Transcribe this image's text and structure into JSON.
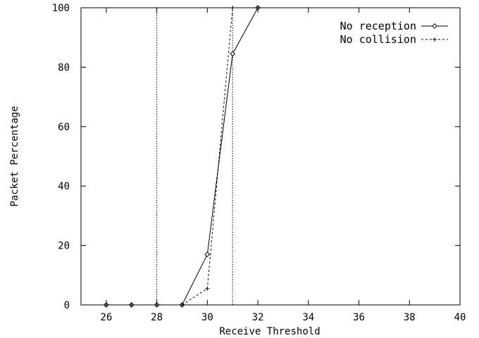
{
  "chart_data": {
    "type": "line",
    "title": "",
    "xlabel": "Receive Threshold",
    "ylabel": "Packet Percentage",
    "xlim": [
      25,
      40
    ],
    "ylim": [
      0,
      100
    ],
    "xticks": [
      26,
      28,
      30,
      32,
      34,
      36,
      38,
      40
    ],
    "yticks": [
      0,
      20,
      40,
      60,
      80,
      100
    ],
    "grid": false,
    "legend_position": "top-right",
    "reference_lines_x": [
      28,
      31
    ],
    "series": [
      {
        "name": "No reception",
        "marker": "diamond",
        "line_style": "solid",
        "color": "#000000",
        "x": [
          26,
          27,
          28,
          29,
          30,
          31,
          32
        ],
        "y": [
          0,
          0,
          0,
          0,
          17,
          84.5,
          100
        ]
      },
      {
        "name": "No collision",
        "marker": "plus",
        "line_style": "dashed",
        "color": "#000000",
        "x": [
          26,
          27,
          28,
          29,
          30,
          31,
          32
        ],
        "y": [
          0,
          0,
          0,
          0,
          5.5,
          100,
          100
        ]
      }
    ]
  }
}
